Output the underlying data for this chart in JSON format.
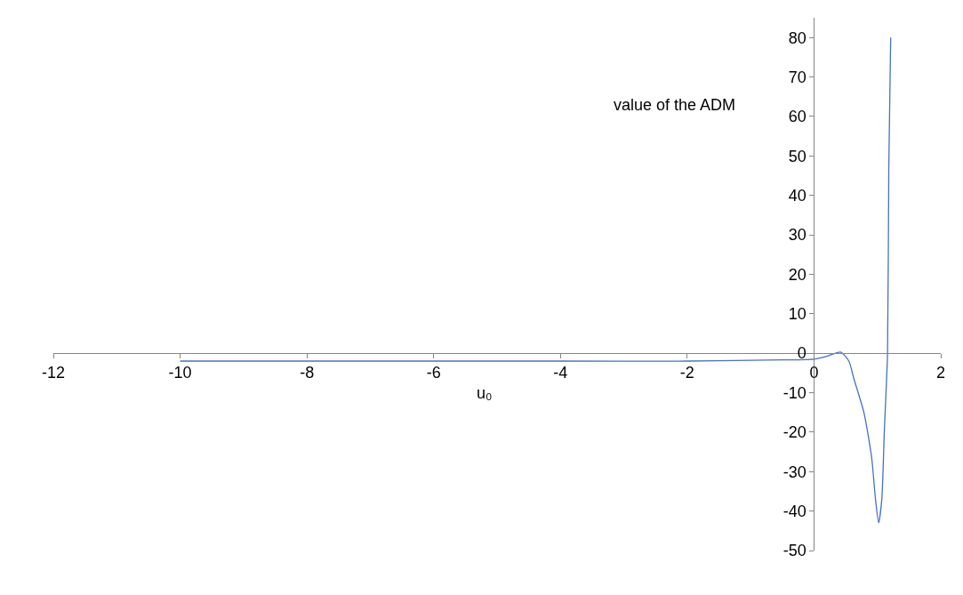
{
  "chart_data": {
    "type": "line",
    "xlabel": "u₀",
    "ylabel": "value of the ADM",
    "x": [
      -10,
      -8,
      -6,
      -4,
      -2,
      -1,
      -0.5,
      0,
      0.2,
      0.42,
      0.55,
      0.63,
      0.79,
      0.91,
      0.97,
      1.02,
      1.07,
      1.11,
      1.16,
      1.18,
      1.21
    ],
    "series": [
      {
        "color": "#4472c4",
        "values": [
          -2,
          -2,
          -2,
          -2,
          -2,
          -1.8,
          -1.7,
          -1.5,
          -0.8,
          0.3,
          -2,
          -6.5,
          -15.2,
          -26.5,
          -37,
          -43,
          -37,
          -19.6,
          0,
          47,
          80
        ]
      }
    ],
    "xlim": [
      -12,
      2
    ],
    "xticks": [
      -12,
      -10,
      -8,
      -6,
      -4,
      -2,
      0,
      2
    ],
    "ylim": [
      -50,
      85
    ],
    "yticks": [
      -50,
      -40,
      -30,
      -20,
      -10,
      0,
      10,
      20,
      30,
      40,
      50,
      60,
      70,
      80
    ],
    "marker": "none",
    "line_style": "solid"
  }
}
